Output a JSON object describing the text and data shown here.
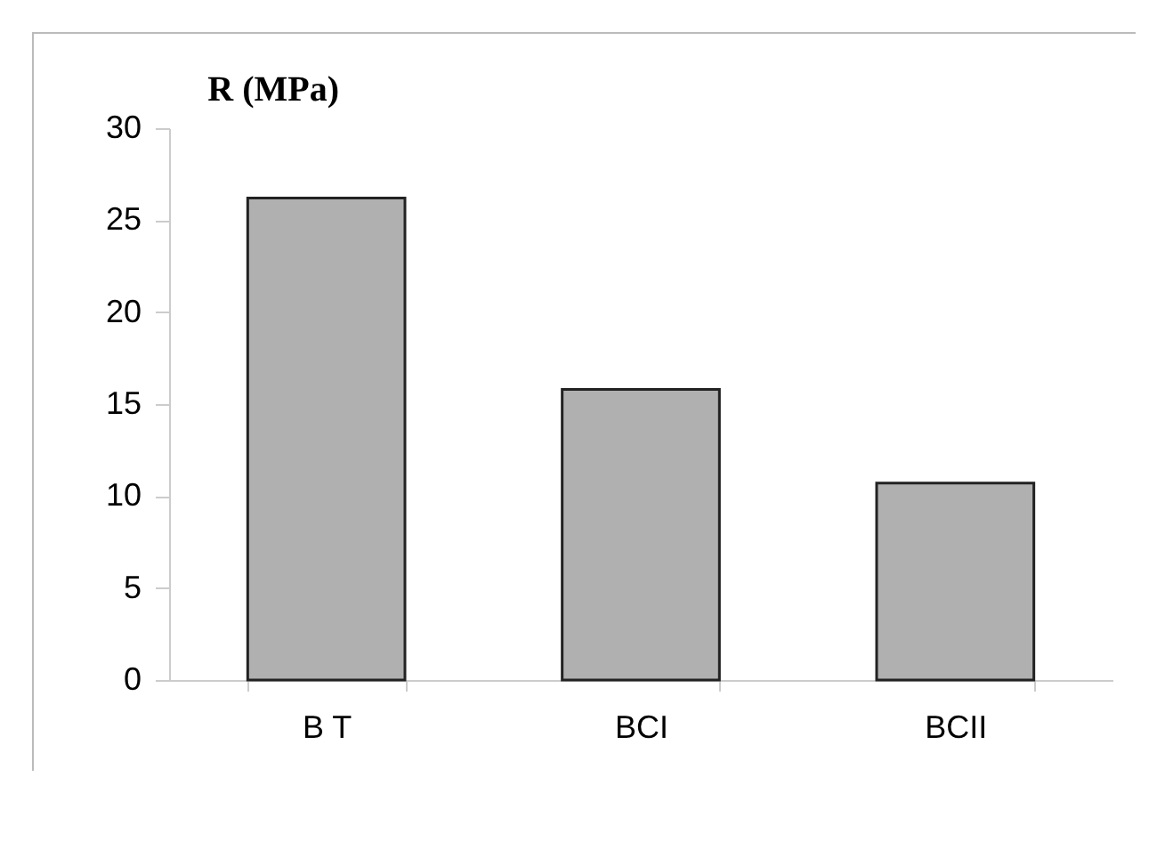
{
  "chart_data": {
    "type": "bar",
    "ylabel": "R (MPa)",
    "categories": [
      "B T",
      "BCI",
      "BCII"
    ],
    "series": [
      {
        "color": "#b0b0b0",
        "values": [
          26.2,
          15.8,
          10.7
        ]
      }
    ],
    "ylim": [
      0,
      30
    ],
    "yticks": [
      0,
      5,
      10,
      15,
      20,
      25,
      30
    ],
    "grid": false,
    "legend": false
  }
}
